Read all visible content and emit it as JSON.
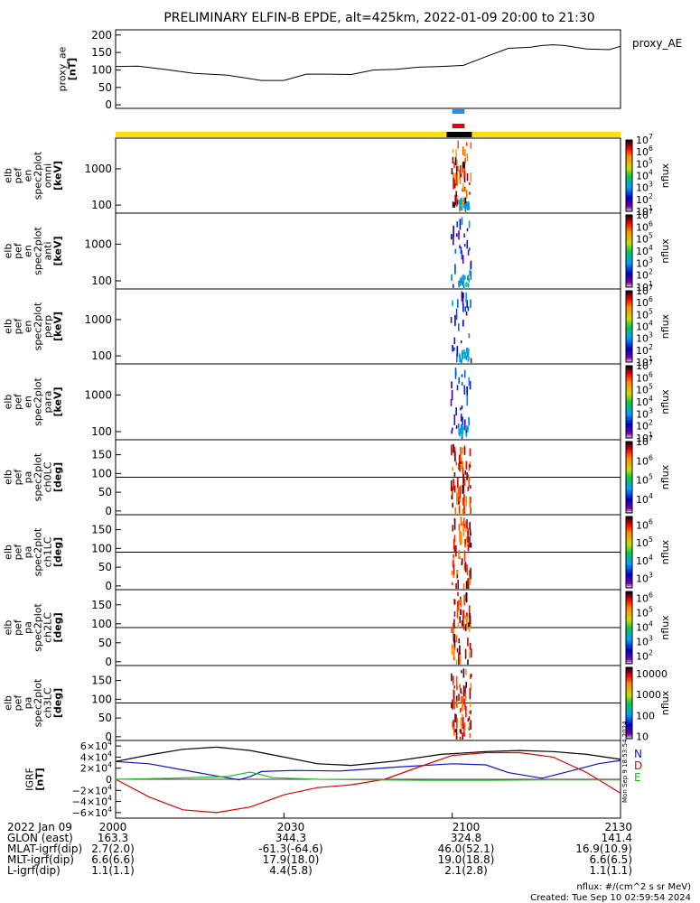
{
  "title": "PRELIMINARY ELFIN-B EPDE, alt=425km, 2022-01-09 20:00 to 21:30",
  "colors": {
    "frame": "#000000",
    "yellow_bar": "#ffe000",
    "blue_bar": "#1e90ff",
    "red_bar": "#e8000b",
    "black_bar": "#000000",
    "igrf_n": "#1010d0",
    "igrf_d": "#e00000",
    "igrf_e": "#20c020",
    "igrf_total": "#000000"
  },
  "chart_data": [
    {
      "id": "proxy_ae",
      "type": "line",
      "ylabel_lines": [
        "proxy_ae",
        "[nT]"
      ],
      "legend": "proxy_AE",
      "ylim": [
        -10,
        215
      ],
      "yticks": [
        "200",
        "150",
        "100",
        "50",
        "0"
      ],
      "ytick_values": [
        200,
        150,
        100,
        50,
        0
      ],
      "x_minutes": [
        0,
        4,
        8,
        14,
        20,
        26,
        30,
        34,
        38,
        42,
        46,
        50,
        54,
        58,
        62,
        66,
        70,
        74,
        76,
        78,
        80,
        84,
        88,
        90
      ],
      "values": [
        110,
        111,
        103,
        90,
        85,
        70,
        70,
        88,
        88,
        87,
        100,
        102,
        108,
        110,
        113,
        138,
        162,
        165,
        170,
        172,
        170,
        160,
        158,
        168
      ]
    },
    {
      "id": "spec_omni",
      "type": "heatmap",
      "ylabel_lines": [
        "elb",
        "pef",
        "en",
        "spec2plot",
        "omni",
        "[keV]"
      ],
      "yscale": "log",
      "ylim": [
        60,
        7000
      ],
      "yticks": [
        "1000",
        "100"
      ],
      "ytick_values": [
        1000,
        100
      ],
      "cbar_label": "nflux",
      "cbar_scale": "log",
      "cbar_range": [
        10,
        10000000
      ],
      "cbar_ticks": [
        "10^7",
        "10^6",
        "10^5",
        "10^4",
        "10^3",
        "10^2",
        "10^1"
      ]
    },
    {
      "id": "spec_anti",
      "type": "heatmap",
      "ylabel_lines": [
        "elb",
        "pef",
        "en",
        "spec2plot",
        "anti",
        "[keV]"
      ],
      "yscale": "log",
      "ylim": [
        60,
        7000
      ],
      "yticks": [
        "1000",
        "100"
      ],
      "ytick_values": [
        1000,
        100
      ],
      "cbar_label": "nflux",
      "cbar_scale": "log",
      "cbar_range": [
        10,
        10000000
      ],
      "cbar_ticks": [
        "10^7",
        "10^6",
        "10^5",
        "10^4",
        "10^3",
        "10^2",
        "10^1"
      ]
    },
    {
      "id": "spec_perp",
      "type": "heatmap",
      "ylabel_lines": [
        "elb",
        "pef",
        "en",
        "spec2plot",
        "perp",
        "[keV]"
      ],
      "yscale": "log",
      "ylim": [
        60,
        7000
      ],
      "yticks": [
        "1000",
        "100"
      ],
      "ytick_values": [
        1000,
        100
      ],
      "cbar_label": "nflux",
      "cbar_scale": "log",
      "cbar_range": [
        10,
        10000000
      ],
      "cbar_ticks": [
        "10^7",
        "10^6",
        "10^5",
        "10^4",
        "10^3",
        "10^2",
        "10^1"
      ]
    },
    {
      "id": "spec_para",
      "type": "heatmap",
      "ylabel_lines": [
        "elb",
        "pef",
        "en",
        "spec2plot",
        "para",
        "[keV]"
      ],
      "yscale": "log",
      "ylim": [
        60,
        7000
      ],
      "yticks": [
        "1000",
        "100"
      ],
      "ytick_values": [
        1000,
        100
      ],
      "cbar_label": "nflux",
      "cbar_scale": "log",
      "cbar_range": [
        10,
        10000000
      ],
      "cbar_ticks": [
        "10^7",
        "10^6",
        "10^5",
        "10^4",
        "10^3",
        "10^2",
        "10^1"
      ]
    },
    {
      "id": "pa_ch0",
      "type": "heatmap",
      "ylabel_lines": [
        "elb",
        "pef",
        "pa",
        "spec2plot",
        "ch0LC",
        "[deg]"
      ],
      "yscale": "linear",
      "ylim": [
        -10,
        190
      ],
      "yticks": [
        "150",
        "100",
        "50",
        "0"
      ],
      "ytick_values": [
        150,
        100,
        50,
        0
      ],
      "cbar_label": "nflux",
      "cbar_scale": "log",
      "cbar_range": [
        2000,
        10000000
      ],
      "cbar_ticks": [
        "10^7",
        "10^6",
        "10^5",
        "10^4"
      ]
    },
    {
      "id": "pa_ch1",
      "type": "heatmap",
      "ylabel_lines": [
        "elb",
        "pef",
        "pa",
        "spec2plot",
        "ch1LC",
        "[deg]"
      ],
      "yscale": "linear",
      "ylim": [
        -10,
        190
      ],
      "yticks": [
        "150",
        "100",
        "50",
        "0"
      ],
      "ytick_values": [
        150,
        100,
        50,
        0
      ],
      "cbar_label": "nflux",
      "cbar_scale": "log",
      "cbar_range": [
        300,
        3000000
      ],
      "cbar_ticks": [
        "10^6",
        "10^5",
        "10^4",
        "10^3"
      ]
    },
    {
      "id": "pa_ch2",
      "type": "heatmap",
      "ylabel_lines": [
        "elb",
        "pef",
        "pa",
        "spec2plot",
        "ch2LC",
        "[deg]"
      ],
      "yscale": "linear",
      "ylim": [
        -10,
        190
      ],
      "yticks": [
        "150",
        "100",
        "50",
        "0"
      ],
      "ytick_values": [
        150,
        100,
        50,
        0
      ],
      "cbar_label": "nflux",
      "cbar_scale": "log",
      "cbar_range": [
        30,
        3000000
      ],
      "cbar_ticks": [
        "10^6",
        "10^5",
        "10^4",
        "10^3",
        "10^2"
      ]
    },
    {
      "id": "pa_ch3",
      "type": "heatmap",
      "ylabel_lines": [
        "elb",
        "pef",
        "pa",
        "spec2plot",
        "ch3LC",
        "[deg]"
      ],
      "yscale": "linear",
      "ylim": [
        -10,
        190
      ],
      "yticks": [
        "150",
        "100",
        "50",
        "0"
      ],
      "ytick_values": [
        150,
        100,
        50,
        0
      ],
      "cbar_label": "nflux",
      "cbar_scale": "log",
      "cbar_range": [
        8,
        20000
      ],
      "cbar_ticks": [
        "10000",
        "1000",
        "100",
        "10"
      ]
    },
    {
      "id": "igrf",
      "type": "line",
      "ylabel_lines": [
        "IGRF",
        "[nT]"
      ],
      "ylim": [
        -70000,
        70000
      ],
      "yticks": [
        "6×10^4",
        "4×10^4",
        "2×10^4",
        "0",
        "−2×10^4",
        "−4×10^4",
        "−6×10^4"
      ],
      "ytick_values": [
        60000,
        40000,
        20000,
        0,
        -20000,
        -40000,
        -60000
      ],
      "legend": [
        "N",
        "D",
        "E"
      ],
      "date_stamp": "Mon Sep  9 18:53:54 2024",
      "series": [
        {
          "name": "N",
          "x_minutes": [
            0,
            6,
            12,
            18,
            22,
            24,
            26,
            32,
            40,
            50,
            60,
            66,
            70,
            76,
            80,
            86,
            90
          ],
          "values": [
            32000,
            28000,
            17000,
            6000,
            -1000,
            5000,
            14000,
            16000,
            15000,
            22000,
            28000,
            26000,
            12000,
            2000,
            12000,
            28000,
            34000
          ]
        },
        {
          "name": "D",
          "x_minutes": [
            0,
            6,
            12,
            18,
            24,
            30,
            36,
            42,
            48,
            54,
            60,
            66,
            72,
            78,
            84,
            90
          ],
          "values": [
            0,
            -32000,
            -55000,
            -60000,
            -50000,
            -28000,
            -15000,
            -10000,
            0,
            22000,
            43000,
            48000,
            48000,
            40000,
            12000,
            -25000
          ]
        },
        {
          "name": "E",
          "x_minutes": [
            0,
            10,
            20,
            24,
            28,
            36,
            46,
            56,
            66,
            76,
            90
          ],
          "values": [
            0,
            2000,
            5000,
            13000,
            3000,
            0,
            -1000,
            -2000,
            -2000,
            -1000,
            -1000
          ]
        },
        {
          "name": "total",
          "x_minutes": [
            0,
            6,
            12,
            18,
            24,
            30,
            36,
            42,
            50,
            58,
            66,
            72,
            78,
            84,
            90
          ],
          "values": [
            32000,
            44000,
            54000,
            58000,
            52000,
            40000,
            28000,
            25000,
            33000,
            45000,
            50000,
            52000,
            50000,
            45000,
            36000
          ]
        }
      ]
    }
  ],
  "spectrogram_marks": {
    "x_range_minutes": [
      60.0,
      62.0
    ],
    "note_source": "dense pixel cluster near 21:00-21:02"
  },
  "interval_bars": {
    "blue_minutes": [
      60.0,
      62.2
    ],
    "red_minutes": [
      60.0,
      62.2
    ],
    "black_minutes": [
      59.0,
      63.5
    ]
  },
  "orbit_table": {
    "rows": [
      {
        "label": "2022 Jan 09",
        "values": [
          "2000",
          "2030",
          "2100",
          "2130"
        ]
      },
      {
        "label": "GLON (east)",
        "values": [
          "163.3",
          "344.3",
          "324.8",
          "141.4"
        ]
      },
      {
        "label": "MLAT-igrf(dip)",
        "values": [
          "2.7(2.0)",
          "-61.3(-64.6)",
          "46.0(52.1)",
          "16.9(10.9)"
        ]
      },
      {
        "label": "MLT-igrf(dip)",
        "values": [
          "6.6(6.6)",
          "17.9(18.0)",
          "19.0(18.8)",
          "6.6(6.5)"
        ]
      },
      {
        "label": "L-igrf(dip)",
        "values": [
          "1.1(1.1)",
          "4.4(5.8)",
          "2.1(2.8)",
          "1.1(1.1)"
        ]
      }
    ]
  },
  "footer": {
    "units": "nflux: #/(cm^2 s sr MeV)",
    "created": "Created: Tue Sep 10 02:59:54 2024"
  }
}
